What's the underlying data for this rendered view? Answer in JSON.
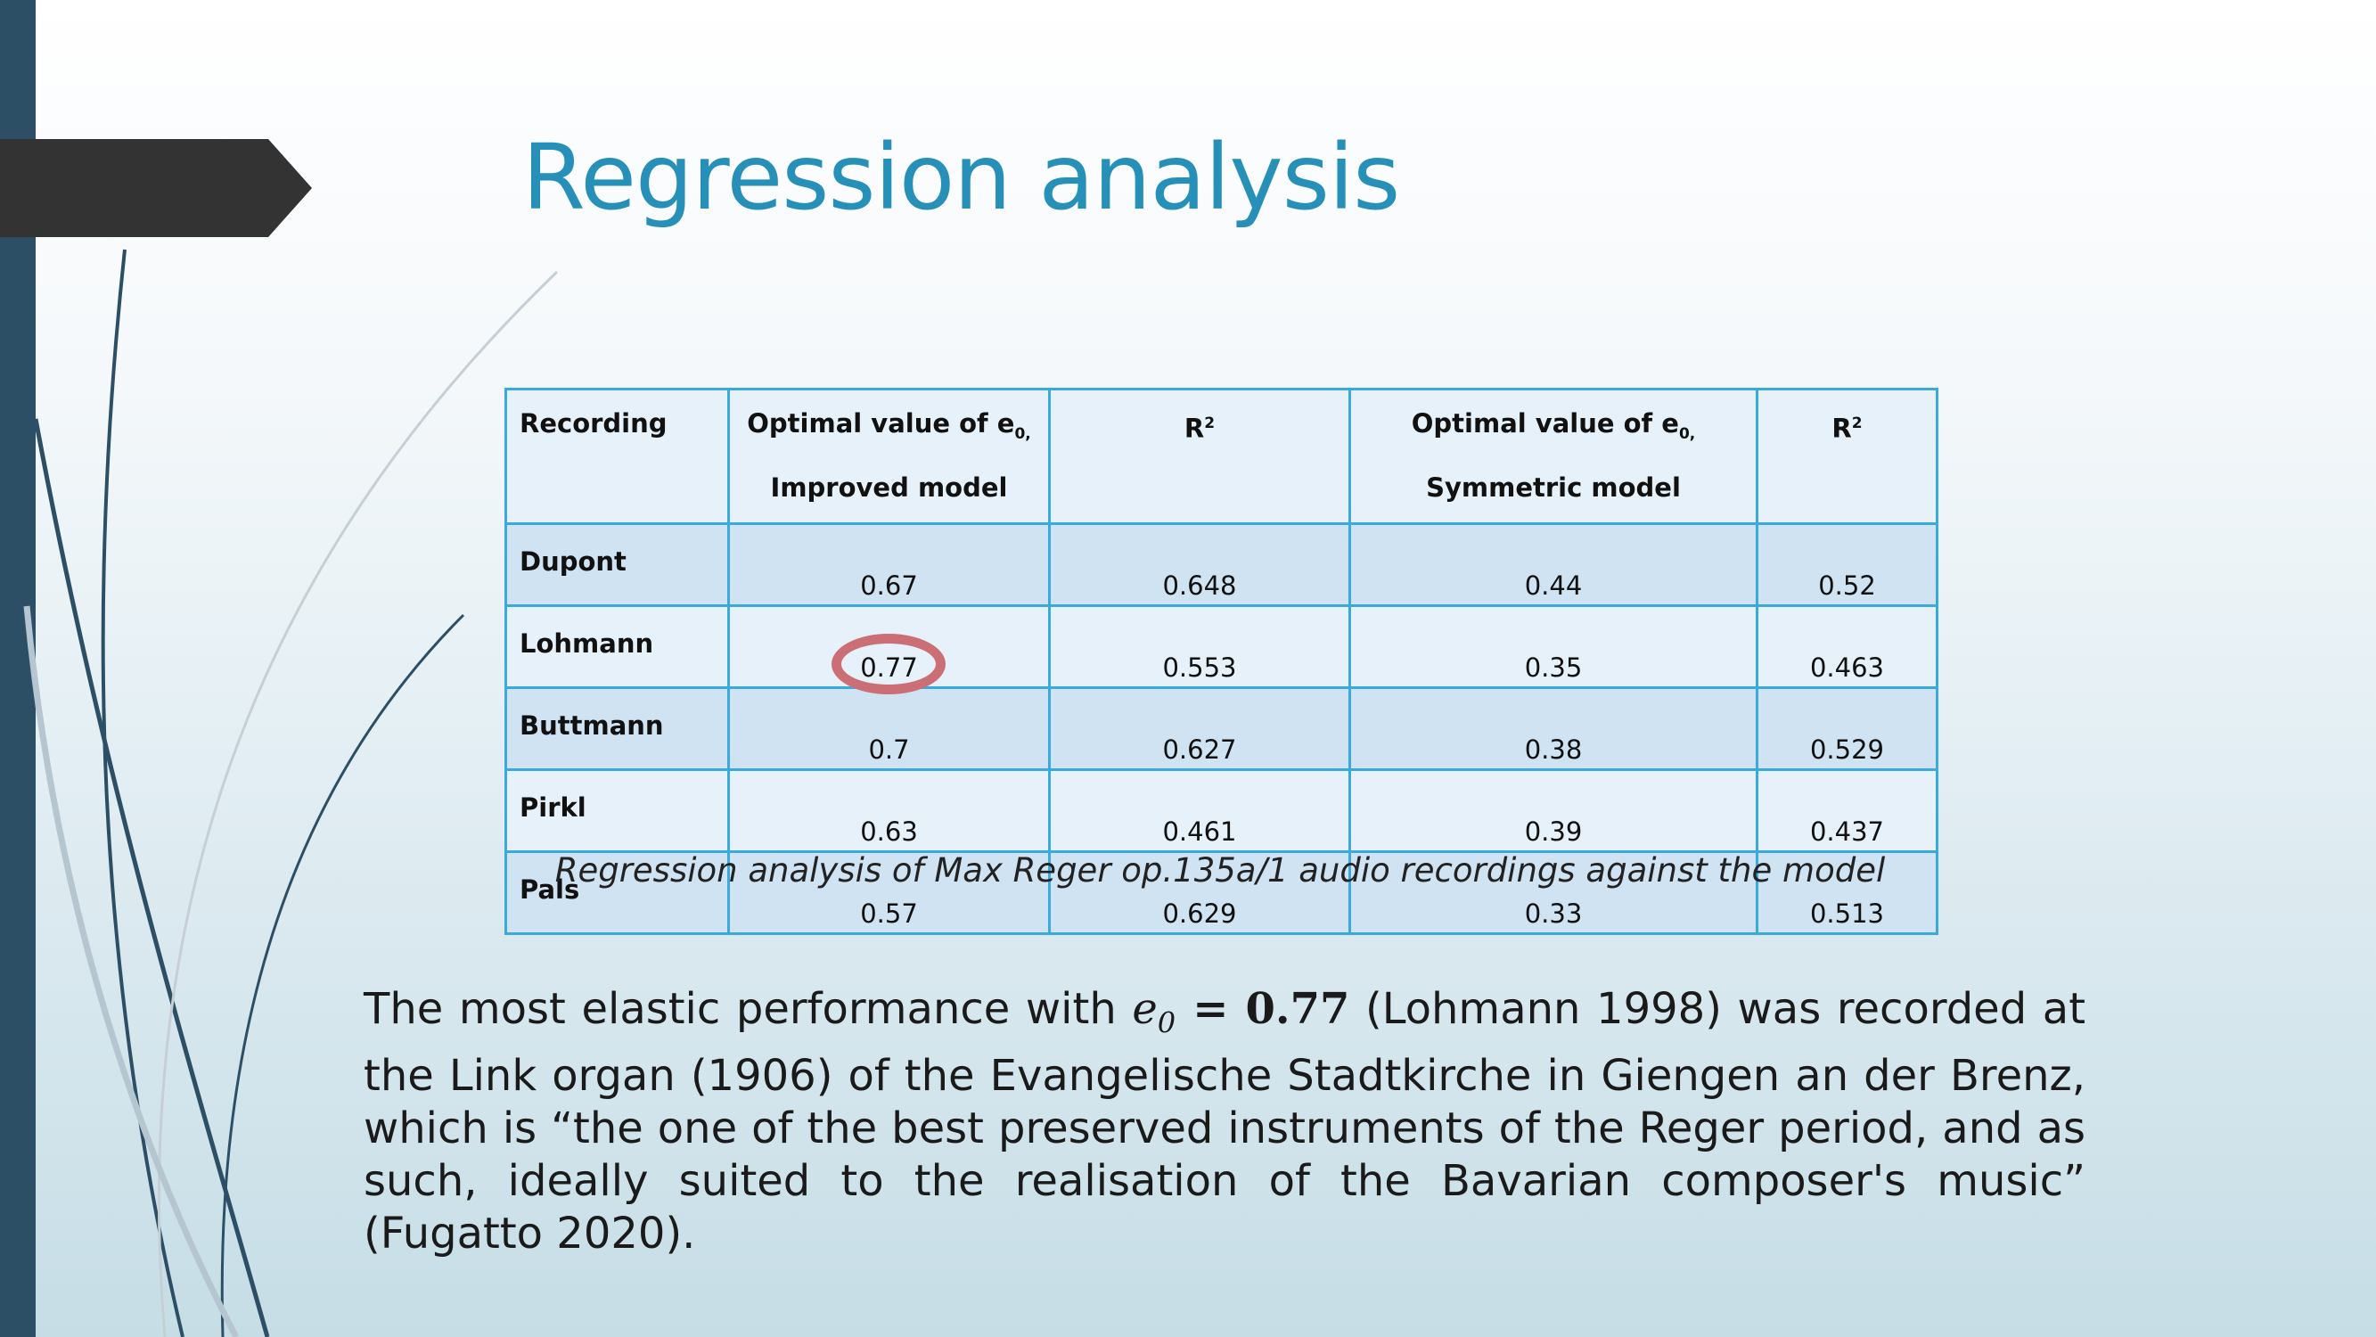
{
  "slide": {
    "title": "Regression analysis"
  },
  "table": {
    "headers": {
      "recording": "Recording",
      "improved_line1": "Optimal value of e",
      "improved_sub": "0,",
      "improved_line2": "Improved model",
      "r2_a_base": "R",
      "r2_a_sup": "2",
      "symmetric_line1": "Optimal value of e",
      "symmetric_sub": "0,",
      "symmetric_line2": "Symmetric model",
      "r2_b_base": "R",
      "r2_b_sup": "2"
    },
    "rows": [
      {
        "recording": "Dupont",
        "improved": "0.67",
        "r2_improved": "0.648",
        "symmetric": "0.44",
        "r2_symmetric": "0.52"
      },
      {
        "recording": "Lohmann",
        "improved": "0.77",
        "r2_improved": "0.553",
        "symmetric": "0.35",
        "r2_symmetric": "0.463"
      },
      {
        "recording": "Buttmann",
        "improved": "0.7",
        "r2_improved": "0.627",
        "symmetric": "0.38",
        "r2_symmetric": "0.529"
      },
      {
        "recording": "Pirkl",
        "improved": "0.63",
        "r2_improved": "0.461",
        "symmetric": "0.39",
        "r2_symmetric": "0.437"
      },
      {
        "recording": "Pals",
        "improved": "0.57",
        "r2_improved": "0.629",
        "symmetric": "0.33",
        "r2_symmetric": "0.513"
      }
    ],
    "highlight_color": "#cc6e75"
  },
  "caption": "Regression analysis of Max Reger op.135a/1 audio recordings against the model",
  "paragraph": {
    "before_math": "The most elastic performance with ",
    "math_var": "e",
    "math_sub": "0",
    "math_eq": " = ",
    "math_val": "0.77",
    "after_math": " (Lohmann 1998) was recorded at the Link organ (1906) of the Evangelische Stadtkirche in Giengen an der Brenz, which is “the one of the best preserved instruments of the Reger period, and as such, ideally suited to the realisation of the Bavarian composer's music” (Fugatto 2020)."
  },
  "colors": {
    "title": "#2690b8",
    "left_bar": "#2c4f66",
    "arrow": "#333333",
    "table_border": "#3aa9dc"
  }
}
